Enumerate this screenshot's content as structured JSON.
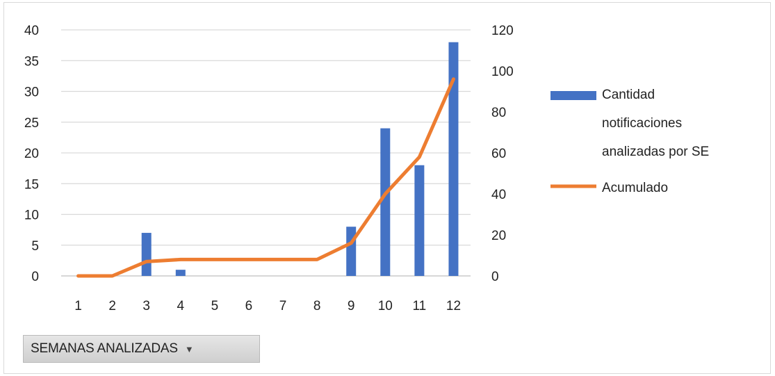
{
  "chart_data": {
    "type": "bar",
    "categories": [
      "1",
      "2",
      "3",
      "4",
      "5",
      "6",
      "7",
      "8",
      "9",
      "10",
      "11",
      "12"
    ],
    "series": [
      {
        "name": "Cantidad notificaciones analizadas por SE",
        "type": "bar",
        "axis": "left",
        "color": "#4472C4",
        "values": [
          0,
          0,
          7,
          1,
          0,
          0,
          0,
          0,
          8,
          24,
          18,
          38
        ]
      },
      {
        "name": "Acumulado",
        "type": "line",
        "axis": "right",
        "color": "#ED7D31",
        "values": [
          0,
          0,
          7,
          8,
          8,
          8,
          8,
          8,
          16,
          40,
          58,
          96
        ]
      }
    ],
    "y_left": {
      "ticks": [
        0,
        5,
        10,
        15,
        20,
        25,
        30,
        35,
        40
      ],
      "ylim": [
        0,
        40
      ]
    },
    "y_right": {
      "ticks": [
        0,
        20,
        40,
        60,
        80,
        100,
        120
      ],
      "ylim": [
        0,
        120
      ]
    },
    "grid": true,
    "legend_position": "right",
    "legend_lines": [
      [
        "Cantidad",
        "notificaciones",
        "analizadas por SE"
      ],
      [
        "Acumulado"
      ]
    ]
  },
  "field_button": {
    "label": "SEMANAS ANALIZADAS",
    "icon": "dropdown-arrow-icon"
  }
}
